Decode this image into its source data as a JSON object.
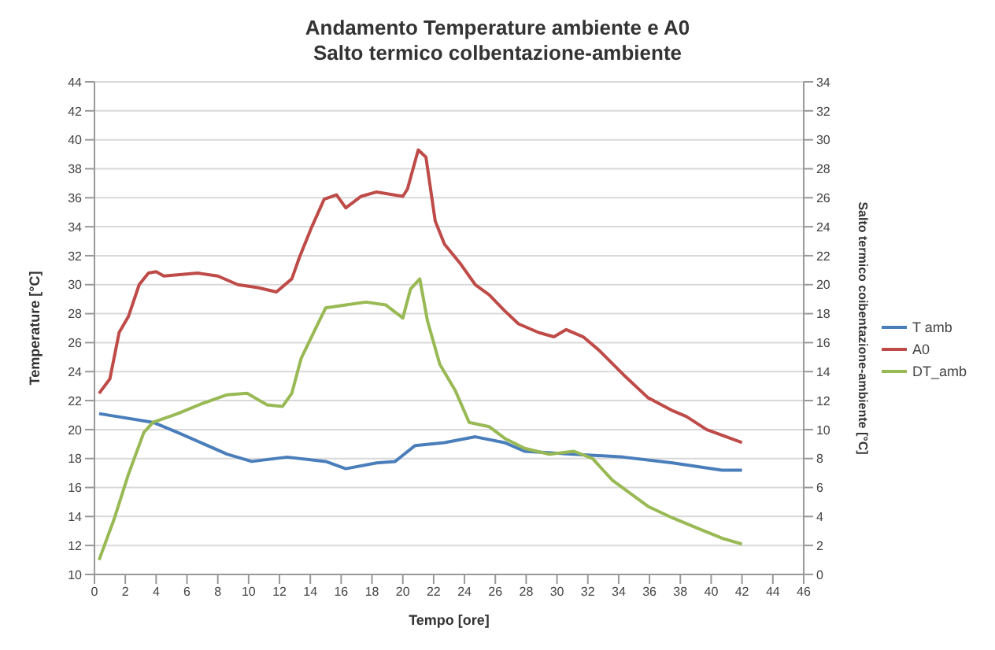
{
  "chart_data": {
    "type": "line",
    "title": "Andamento Temperature  ambiente e A0",
    "subtitle": "Salto termico colbentazione-ambiente",
    "xlabel": "Tempo [ore]",
    "ylabel": "Temperature [°C]",
    "y2label": "Salto termico coibentazione-ambiente [°C]",
    "xlim": [
      0,
      46
    ],
    "xticks": [
      0,
      2,
      4,
      6,
      8,
      10,
      12,
      14,
      16,
      18,
      20,
      22,
      24,
      26,
      28,
      30,
      32,
      34,
      36,
      38,
      40,
      42,
      44,
      46
    ],
    "ylim": [
      10,
      44
    ],
    "yticks": [
      10,
      12,
      14,
      16,
      18,
      20,
      22,
      24,
      26,
      28,
      30,
      32,
      34,
      36,
      38,
      40,
      42,
      44
    ],
    "y2lim": [
      0,
      34
    ],
    "y2ticks": [
      0,
      2,
      4,
      6,
      8,
      10,
      12,
      14,
      16,
      18,
      20,
      22,
      24,
      26,
      28,
      30,
      32,
      34
    ],
    "grid": "y",
    "legend": "right",
    "marker": "none",
    "series": [
      {
        "name": "T amb",
        "color": "#4a7ebb",
        "x": [
          0.3,
          3.8,
          5.4,
          8.6,
          10.2,
          12.5,
          15.0,
          16.3,
          18.3,
          19.5,
          20.8,
          22.7,
          24.7,
          26.6,
          27.9,
          31.1,
          34.3,
          37.5,
          40.7,
          42
        ],
        "values": [
          21.1,
          20.5,
          19.8,
          18.3,
          17.8,
          18.1,
          17.8,
          17.3,
          17.7,
          17.8,
          18.9,
          19.1,
          19.5,
          19.1,
          18.5,
          18.3,
          18.1,
          17.7,
          17.2,
          17.2
        ]
      },
      {
        "name": "A0",
        "color": "#be4b48",
        "x": [
          0.3,
          1.0,
          1.6,
          2.2,
          2.9,
          3.5,
          4.0,
          4.5,
          6.7,
          8.0,
          9.3,
          10.6,
          11.8,
          12.8,
          13.3,
          14.1,
          14.9,
          15.7,
          16.3,
          17.3,
          18.3,
          20.0,
          20.3,
          21.0,
          21.5,
          22.1,
          22.7,
          23.7,
          24.7,
          25.6,
          26.6,
          27.5,
          28.8,
          29.8,
          30.6,
          31.7,
          32.7,
          34.3,
          35.9,
          37.5,
          38.4,
          39.7,
          42
        ],
        "values": [
          22.5,
          23.5,
          26.7,
          27.8,
          30.0,
          30.8,
          30.9,
          30.6,
          30.8,
          30.6,
          30.0,
          29.8,
          29.5,
          30.4,
          31.9,
          34.0,
          35.9,
          36.2,
          35.3,
          36.1,
          36.4,
          36.1,
          36.6,
          39.3,
          38.8,
          34.4,
          32.8,
          31.5,
          30.0,
          29.3,
          28.2,
          27.3,
          26.7,
          26.4,
          26.9,
          26.4,
          25.5,
          23.8,
          22.2,
          21.3,
          20.9,
          20.0,
          19.1
        ]
      },
      {
        "name": "DT_amb",
        "color": "#98b954",
        "axis": "y2",
        "x": [
          0.3,
          1.3,
          2.2,
          3.2,
          3.8,
          5.4,
          7.0,
          8.6,
          9.9,
          11.2,
          12.2,
          12.8,
          13.4,
          14.4,
          15.0,
          16.3,
          17.6,
          18.9,
          20.0,
          20.5,
          21.1,
          21.6,
          22.4,
          23.4,
          24.3,
          25.6,
          26.6,
          27.9,
          29.5,
          31.1,
          32.3,
          33.6,
          35.9,
          37.5,
          39.1,
          40.7,
          42
        ],
        "values": [
          1.0,
          3.9,
          6.9,
          9.8,
          10.5,
          11.1,
          11.8,
          12.4,
          12.5,
          11.7,
          11.6,
          12.5,
          14.9,
          17.1,
          18.4,
          18.6,
          18.8,
          18.6,
          17.7,
          19.7,
          20.4,
          17.5,
          14.5,
          12.7,
          10.5,
          10.2,
          9.4,
          8.7,
          8.3,
          8.5,
          8.0,
          6.5,
          4.7,
          3.9,
          3.2,
          2.5,
          2.1
        ]
      }
    ]
  }
}
